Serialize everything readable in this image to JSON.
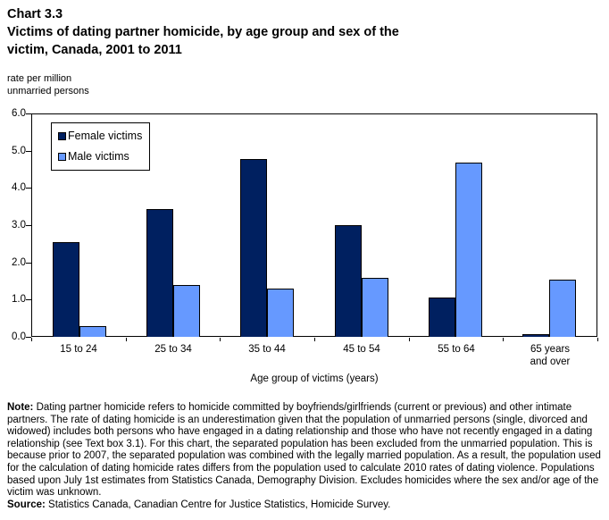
{
  "header": {
    "chart_number": "Chart 3.3",
    "title": "Victims of dating partner homicide, by age group and sex of the\nvictim, Canada, 2001 to 2011"
  },
  "colors": {
    "female_bar": "#002060",
    "male_bar": "#6699FF",
    "axis": "#000000",
    "background": "#FFFFFF"
  },
  "chart_data": {
    "type": "bar",
    "title": "Victims of dating partner homicide, by age group and sex of the victim, Canada, 2001 to 2011",
    "categories": [
      "15 to 24",
      "25 to 34",
      "35 to 44",
      "45 to 54",
      "55 to 64",
      "65 years\nand over"
    ],
    "series": [
      {
        "name": "Female victims",
        "color": "#002060",
        "values": [
          2.55,
          3.45,
          4.8,
          3.0,
          1.05,
          0.07
        ]
      },
      {
        "name": "Male victims",
        "color": "#6699FF",
        "values": [
          0.3,
          1.4,
          1.3,
          1.6,
          4.7,
          1.55
        ]
      }
    ],
    "ylabel": "rate per million\nunmarried persons",
    "xlabel": "Age group of victims (years)",
    "ylim": [
      0,
      6
    ],
    "ytick_labels": [
      "0.0",
      "1.0",
      "2.0",
      "3.0",
      "4.0",
      "5.0",
      "6.0"
    ],
    "grid": false,
    "legend_position": "top-left-inside"
  },
  "notes": {
    "note_label": "Note:",
    "note_text": "Dating partner homicide refers to homicide committed by boyfriends/girlfriends (current or previous) and other intimate partners. The rate of dating homicide is an underestimation given that the population of unmarried persons (single, divorced and widowed) includes both persons who have engaged in a dating relationship and those who have not recently engaged in a dating relationship (see Text box 3.1). For this chart, the separated population has been excluded from the unmarried population. This is because prior to 2007, the separated population was combined with the legally married population. As a result, the population used for the calculation of dating homicide rates differs from the population used to calculate 2010 rates of dating violence. Populations based upon July 1st estimates from Statistics Canada, Demography Division. Excludes homicides where the sex and/or age of the victim was unknown.",
    "source_label": "Source:",
    "source_text": "Statistics Canada, Canadian Centre for Justice Statistics, Homicide Survey."
  }
}
